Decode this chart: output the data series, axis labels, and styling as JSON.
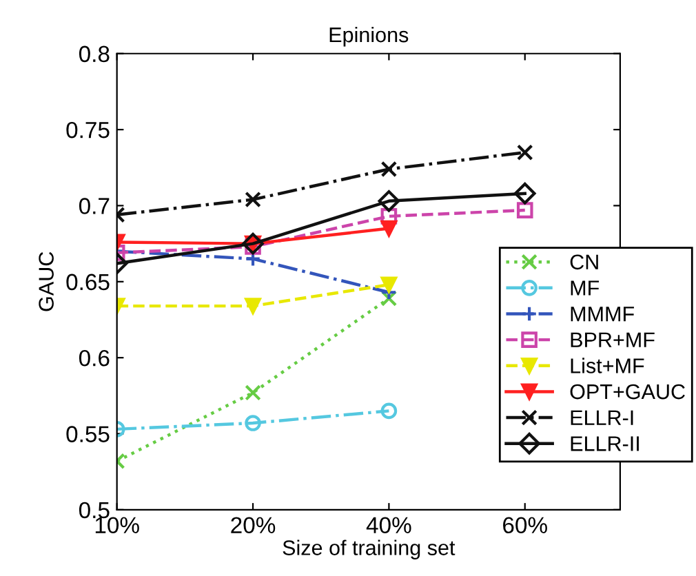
{
  "chart_data": {
    "type": "line",
    "title": "Epinions",
    "xlabel": "Size of training set",
    "ylabel": "GAUC",
    "categories": [
      "10%",
      "20%",
      "40%",
      "60%"
    ],
    "series": [
      {
        "name": "CN",
        "color": "#66cc44",
        "marker": "cross",
        "line_style": "dotted",
        "values": [
          0.532,
          0.577,
          0.639,
          null
        ]
      },
      {
        "name": "MF",
        "color": "#55c8e0",
        "marker": "circle",
        "line_style": "dashdot",
        "values": [
          0.553,
          0.557,
          0.565,
          null
        ]
      },
      {
        "name": "MMMF",
        "color": "#3355bb",
        "marker": "plus",
        "line_style": "dashdot",
        "values": [
          0.67,
          0.665,
          0.643,
          null
        ]
      },
      {
        "name": "BPR+MF",
        "color": "#cc44aa",
        "marker": "square",
        "line_style": "dashed",
        "values": [
          0.669,
          0.673,
          0.693,
          0.697
        ]
      },
      {
        "name": "List+MF",
        "color": "#e8e800",
        "marker": "triangle",
        "line_style": "dashed",
        "values": [
          0.634,
          0.634,
          0.648,
          null
        ]
      },
      {
        "name": "OPT+GAUC",
        "color": "#ff2020",
        "marker": "triangle",
        "line_style": "solid",
        "values": [
          0.676,
          0.675,
          0.685,
          null
        ]
      },
      {
        "name": "ELLR-I",
        "color": "#111111",
        "marker": "cross",
        "line_style": "dashdot",
        "values": [
          0.694,
          0.704,
          0.724,
          0.735
        ]
      },
      {
        "name": "ELLR-II",
        "color": "#111111",
        "marker": "diamond",
        "line_style": "solid",
        "values": [
          0.662,
          0.675,
          0.703,
          0.708
        ]
      }
    ],
    "ylim": [
      0.5,
      0.8
    ],
    "yticks": [
      0.5,
      0.55,
      0.6,
      0.65,
      0.7,
      0.75,
      0.8
    ],
    "grid": false,
    "legend": "right"
  }
}
